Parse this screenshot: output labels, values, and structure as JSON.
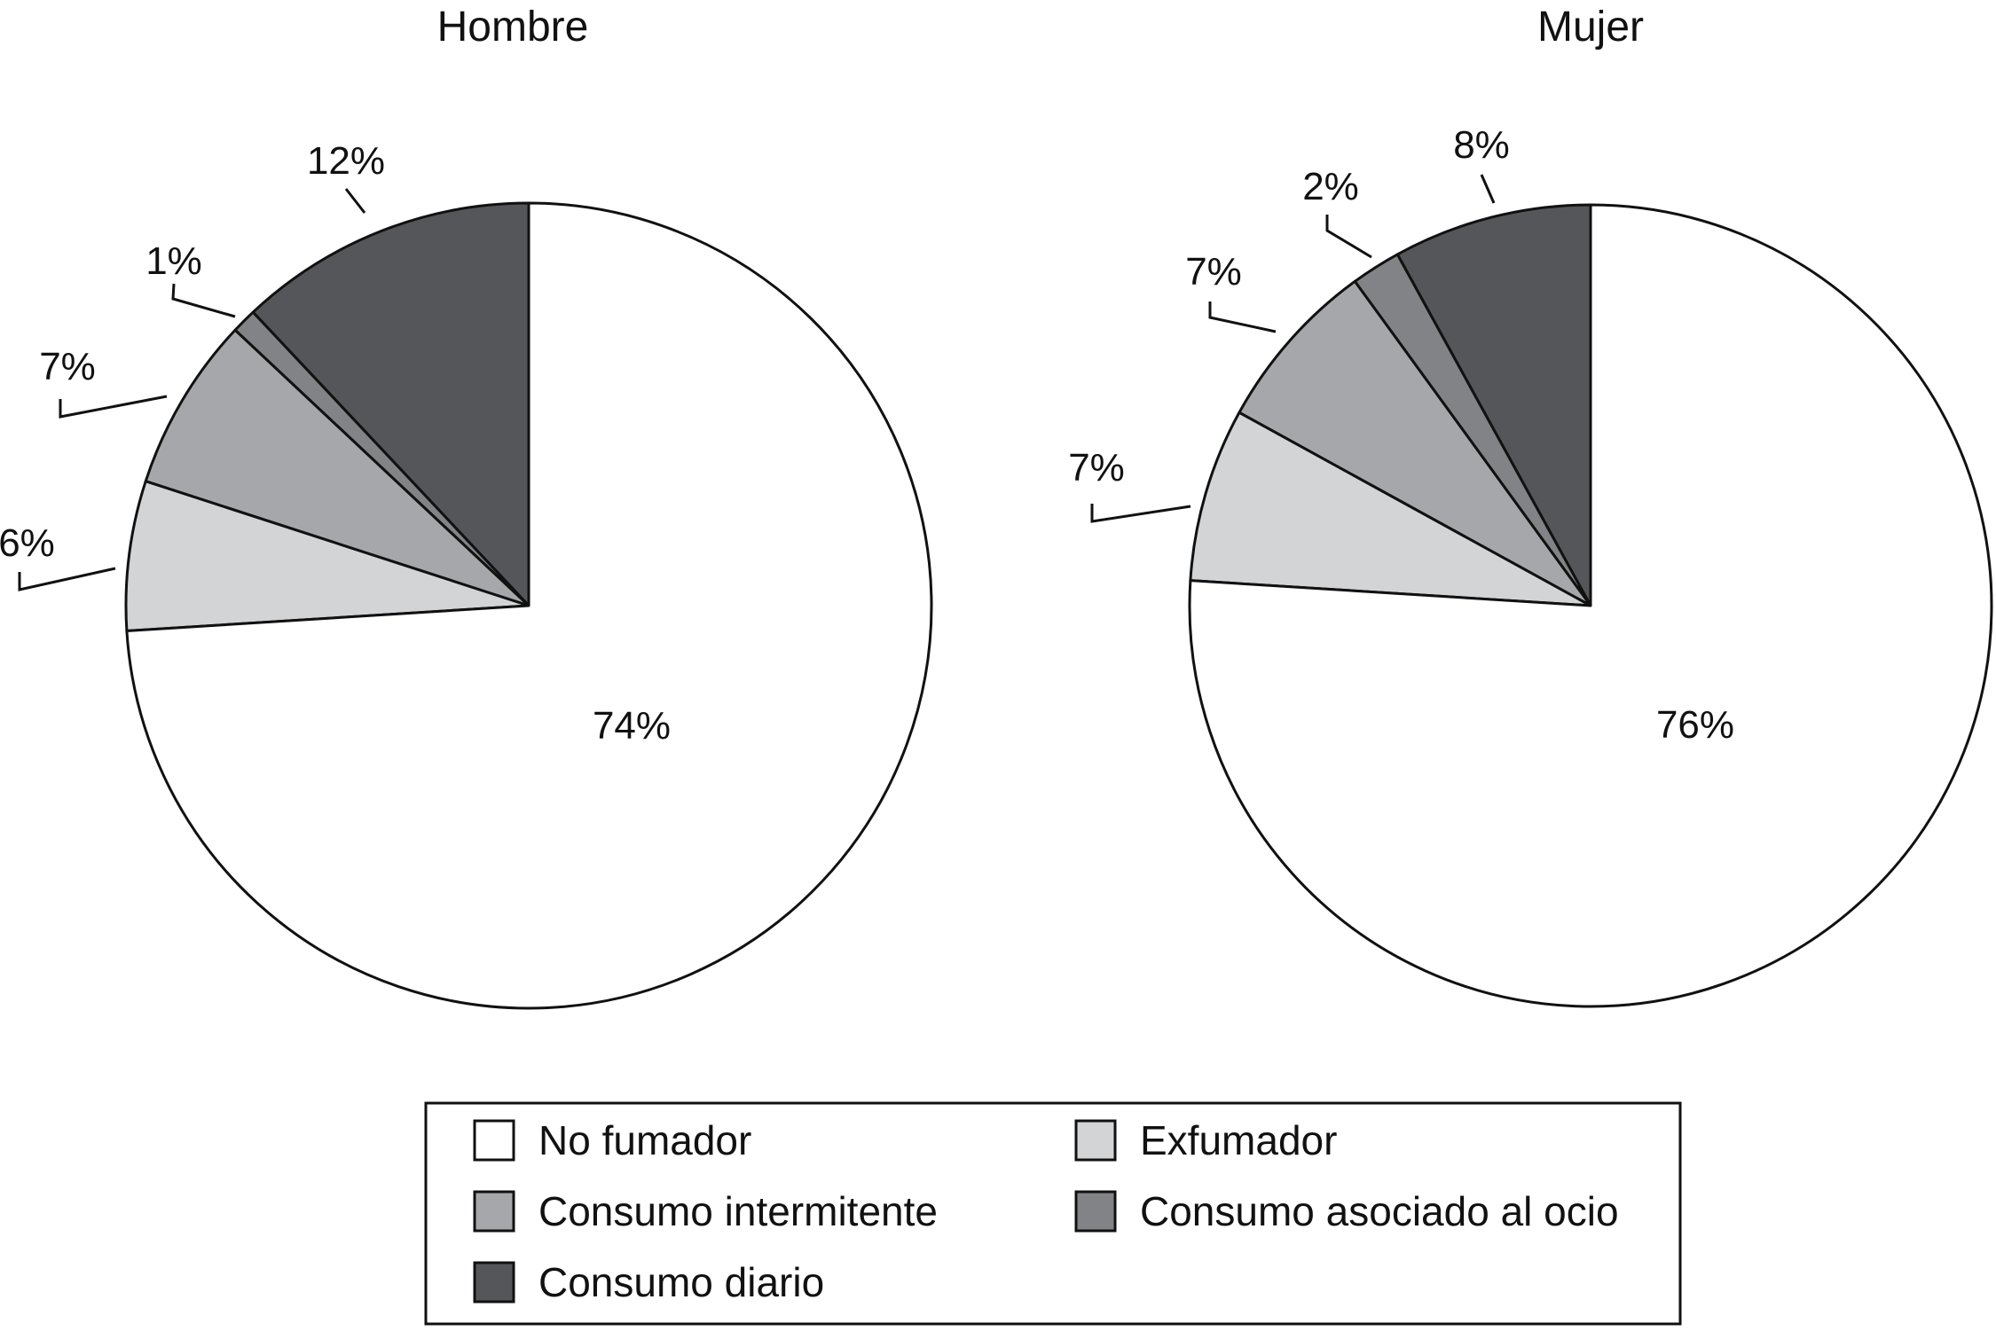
{
  "chart_data": [
    {
      "type": "pie",
      "title": "Hombre",
      "start": "12 o'clock, counter-clockwise",
      "slices": [
        {
          "category": "Consumo diario",
          "value": 12,
          "label": "12%",
          "leader": true
        },
        {
          "category": "Consumo asociado al ocio",
          "value": 1,
          "label": "1%",
          "leader": true
        },
        {
          "category": "Consumo intermitente",
          "value": 7,
          "label": "7%",
          "leader": true
        },
        {
          "category": "Exfumador",
          "value": 6,
          "label": "6%",
          "leader": true
        },
        {
          "category": "No fumador",
          "value": 74,
          "label": "74%",
          "leader": false
        }
      ]
    },
    {
      "type": "pie",
      "title": "Mujer",
      "start": "12 o'clock, counter-clockwise",
      "slices": [
        {
          "category": "Consumo diario",
          "value": 8,
          "label": "8%",
          "leader": true
        },
        {
          "category": "Consumo asociado al ocio",
          "value": 2,
          "label": "2%",
          "leader": true
        },
        {
          "category": "Consumo intermitente",
          "value": 7,
          "label": "7%",
          "leader": true
        },
        {
          "category": "Exfumador",
          "value": 7,
          "label": "7%",
          "leader": true
        },
        {
          "category": "No fumador",
          "value": 76,
          "label": "76%",
          "leader": false
        }
      ]
    }
  ],
  "legend": {
    "placement": "bottom-center",
    "items": [
      {
        "label": "No fumador",
        "color": "#ffffff"
      },
      {
        "label": "Exfumador",
        "color": "#d3d4d6"
      },
      {
        "label": "Consumo intermitente",
        "color": "#a6a7aa"
      },
      {
        "label": "Consumo asociado al ocio",
        "color": "#828386"
      },
      {
        "label": "Consumo diario",
        "color": "#55565a"
      }
    ]
  },
  "colors": {
    "No fumador": "#ffffff",
    "Exfumador": "#d3d4d6",
    "Consumo intermitente": "#a6a7aa",
    "Consumo asociado al ocio": "#828386",
    "Consumo diario": "#55565a",
    "stroke": "#111111"
  }
}
